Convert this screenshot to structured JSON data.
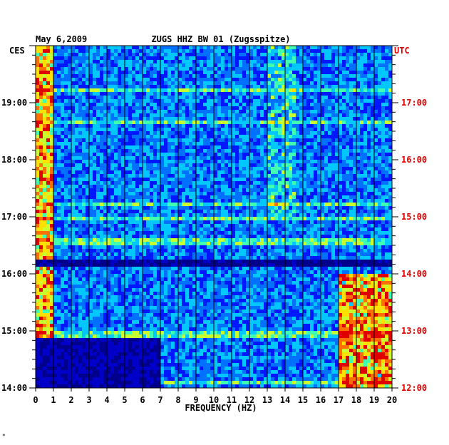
{
  "chart_data": {
    "type": "heatmap",
    "date": "May 6,2009",
    "title": "ZUGS HHZ BW 01 (Zugsspitze)",
    "left_timezone": "CES",
    "right_timezone": "UTC",
    "xlabel": "FREQUENCY (HZ)",
    "x_ticks": [
      "0",
      "1",
      "2",
      "3",
      "4",
      "5",
      "6",
      "7",
      "8",
      "9",
      "10",
      "11",
      "12",
      "13",
      "14",
      "15",
      "16",
      "17",
      "18",
      "19",
      "20"
    ],
    "xlim": [
      0,
      20
    ],
    "left_time_ticks": [
      "19:00",
      "18:00",
      "17:00",
      "16:00",
      "15:00",
      "14:00"
    ],
    "right_time_ticks": [
      "17:00",
      "16:00",
      "15:00",
      "14:00",
      "13:00",
      "12:00"
    ],
    "time_range_ces": [
      "14:00",
      "20:00"
    ],
    "colorscale": [
      "#00008c",
      "#0000c8",
      "#0018ff",
      "#0070ff",
      "#00c8ff",
      "#40ffb0",
      "#c8ff30",
      "#ffe000",
      "#ff7000",
      "#e00000"
    ],
    "features": [
      {
        "desc": "broadband low-frequency energy",
        "freq_hz": [
          0,
          1
        ],
        "level": 0.6
      },
      {
        "desc": "persistent band",
        "freq_hz": [
          13.2,
          14.4
        ],
        "time_ces": [
          "17:00",
          "20:00"
        ],
        "level": 0.55
      },
      {
        "desc": "noise burst",
        "freq_hz": [
          17,
          20
        ],
        "time_ces": [
          "14:00",
          "16:00"
        ],
        "level": 0.75
      },
      {
        "desc": "low-energy gap",
        "freq_hz": [
          0,
          20
        ],
        "time_ces": [
          "16:10",
          "16:20"
        ],
        "level": 0.05
      }
    ]
  },
  "footer_mark": "*"
}
